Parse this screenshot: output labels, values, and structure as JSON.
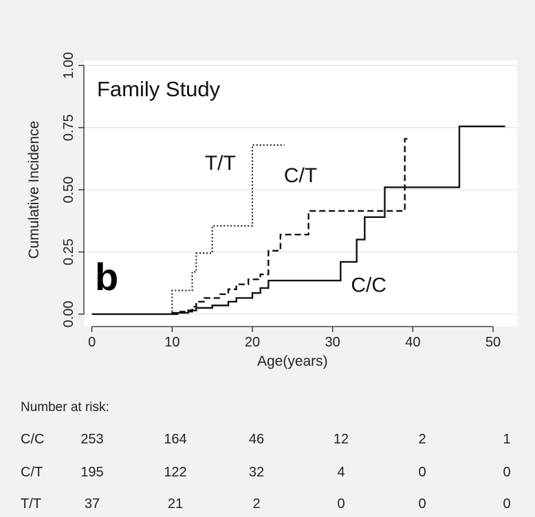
{
  "chart_data": {
    "type": "line",
    "step": true,
    "annotation_title": "Family Study",
    "panel_label": "b",
    "xlabel": "Age(years)",
    "ylabel": "Cumulative Incidence",
    "xlim": [
      -1,
      53
    ],
    "ylim": [
      -0.05,
      1.02
    ],
    "xticks": [
      0,
      10,
      20,
      30,
      40,
      50
    ],
    "yticks": [
      0.0,
      0.25,
      0.5,
      0.75,
      1.0
    ],
    "xtick_labels": [
      "0",
      "10",
      "20",
      "30",
      "40",
      "50"
    ],
    "ytick_labels": [
      "0.00",
      "0.25",
      "0.50",
      "0.75",
      "1.00"
    ],
    "grid": "horizontal",
    "series": [
      {
        "name": "C/C",
        "style": "solid",
        "color": "#111111",
        "x": [
          0,
          10,
          12,
          13,
          15,
          17,
          18,
          20,
          21,
          22,
          31,
          33,
          34,
          36.5,
          45.8,
          51.5
        ],
        "y": [
          0,
          0.005,
          0.015,
          0.025,
          0.035,
          0.05,
          0.065,
          0.085,
          0.105,
          0.135,
          0.21,
          0.3,
          0.39,
          0.51,
          0.755,
          0.755
        ]
      },
      {
        "name": "C/T",
        "style": "dashed",
        "color": "#111111",
        "x": [
          10,
          11,
          12.5,
          13,
          14,
          16,
          17,
          18,
          19.5,
          21,
          22,
          23.5,
          27,
          39,
          39.5
        ],
        "y": [
          0,
          0.01,
          0.03,
          0.05,
          0.065,
          0.08,
          0.1,
          0.12,
          0.14,
          0.16,
          0.255,
          0.32,
          0.415,
          0.705,
          0.705
        ]
      },
      {
        "name": "T/T",
        "style": "dotted",
        "color": "#111111",
        "x": [
          0,
          10,
          12.5,
          13,
          15,
          20,
          24
        ],
        "y": [
          0,
          0.095,
          0.17,
          0.245,
          0.355,
          0.68,
          0.68
        ]
      }
    ],
    "series_labels": [
      {
        "text": "T/T",
        "x": 16,
        "y": 0.58
      },
      {
        "text": "C/T",
        "x": 26,
        "y": 0.53
      },
      {
        "text": "C/C",
        "x": 34.5,
        "y": 0.09
      }
    ]
  },
  "risk_table": {
    "title": "Number at risk:",
    "rows": [
      {
        "label": "C/C",
        "values": [
          "253",
          "164",
          "46",
          "12",
          "2",
          "1"
        ]
      },
      {
        "label": "C/T",
        "values": [
          "195",
          "122",
          "32",
          "4",
          "0",
          "0"
        ]
      },
      {
        "label": "T/T",
        "values": [
          "37",
          "21",
          "2",
          "0",
          "0",
          "0"
        ]
      }
    ]
  }
}
